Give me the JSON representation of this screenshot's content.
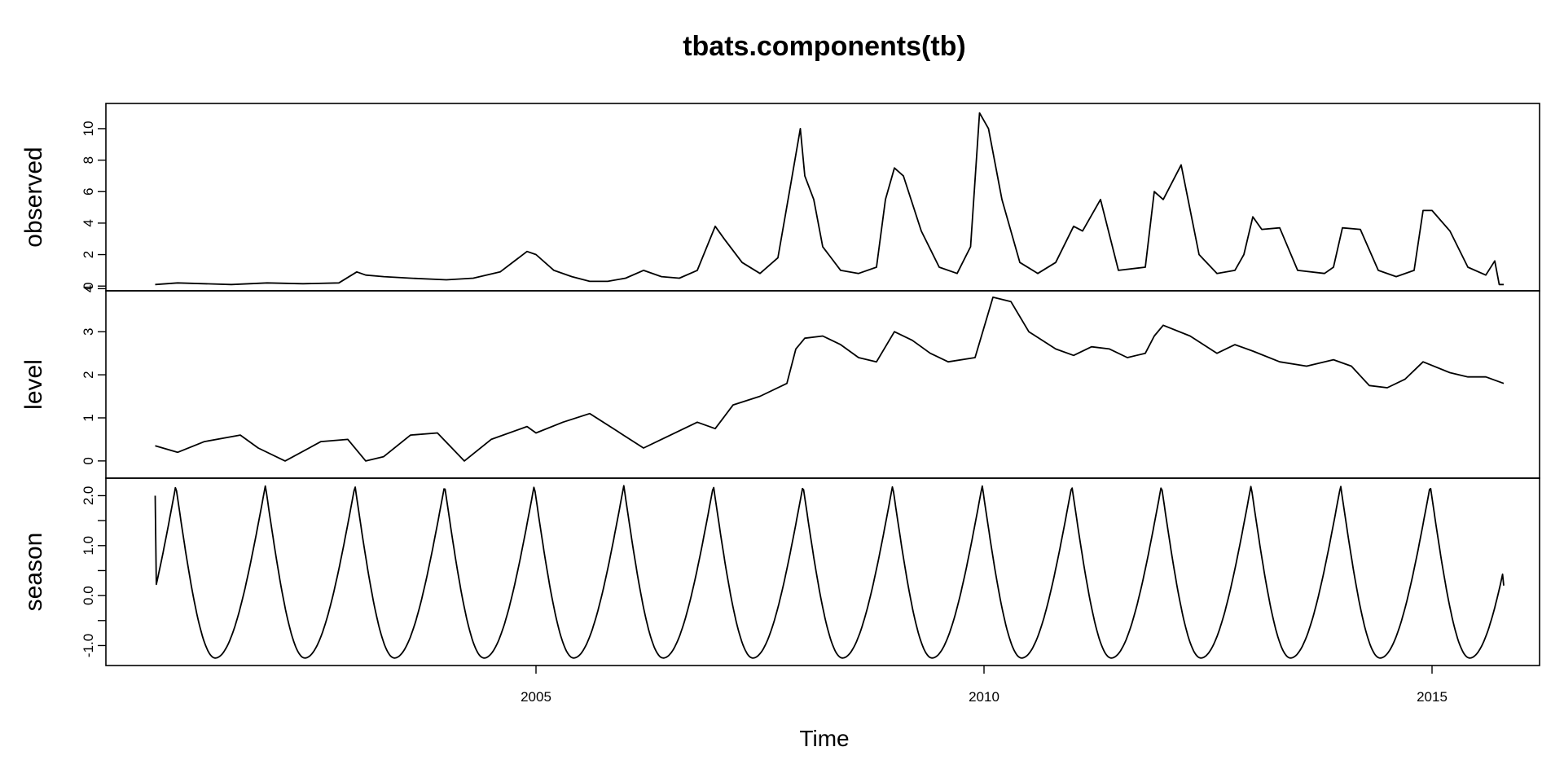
{
  "chart_data": {
    "type": "line",
    "title": "tbats.components(tb)",
    "xlabel": "Time",
    "xlim": [
      2000.2,
      2016.2
    ],
    "x_ticks": [
      2005,
      2010,
      2015
    ],
    "x_tick_labels": [
      "2005",
      "2010",
      "2015"
    ],
    "panels": [
      {
        "name": "observed",
        "ylabel": "observed",
        "ylim": [
          -0.3,
          11.6
        ],
        "y_ticks": [
          0,
          2,
          4,
          6,
          8,
          10
        ],
        "y_tick_labels": [
          "0",
          "2",
          "4",
          "6",
          "8",
          "10"
        ],
        "x": [
          2000.75,
          2001.0,
          2001.3,
          2001.6,
          2002.0,
          2002.4,
          2002.8,
          2003.0,
          2003.1,
          2003.3,
          2003.6,
          2004.0,
          2004.3,
          2004.6,
          2004.9,
          2005.0,
          2005.2,
          2005.4,
          2005.6,
          2005.8,
          2006.0,
          2006.2,
          2006.4,
          2006.6,
          2006.8,
          2007.0,
          2007.1,
          2007.3,
          2007.5,
          2007.7,
          2007.85,
          2007.95,
          2008.0,
          2008.1,
          2008.2,
          2008.4,
          2008.6,
          2008.8,
          2008.9,
          2009.0,
          2009.1,
          2009.3,
          2009.5,
          2009.7,
          2009.85,
          2009.95,
          2010.05,
          2010.2,
          2010.4,
          2010.6,
          2010.8,
          2011.0,
          2011.1,
          2011.3,
          2011.5,
          2011.8,
          2011.9,
          2012.0,
          2012.2,
          2012.4,
          2012.6,
          2012.8,
          2012.9,
          2013.0,
          2013.1,
          2013.3,
          2013.5,
          2013.8,
          2013.9,
          2014.0,
          2014.2,
          2014.4,
          2014.6,
          2014.8,
          2014.9,
          2015.0,
          2015.2,
          2015.4,
          2015.6,
          2015.7,
          2015.75,
          2015.8
        ],
        "values": [
          0.1,
          0.2,
          0.15,
          0.1,
          0.2,
          0.15,
          0.2,
          0.9,
          0.7,
          0.6,
          0.5,
          0.4,
          0.5,
          0.9,
          2.2,
          2.0,
          1.0,
          0.6,
          0.3,
          0.3,
          0.5,
          1.0,
          0.6,
          0.5,
          1.0,
          3.8,
          3.0,
          1.5,
          0.8,
          1.8,
          6.7,
          10.0,
          7.0,
          5.5,
          2.5,
          1.0,
          0.8,
          1.2,
          5.5,
          7.5,
          7.0,
          3.5,
          1.2,
          0.8,
          2.5,
          11.0,
          10.0,
          5.5,
          1.5,
          0.8,
          1.5,
          3.8,
          3.5,
          5.5,
          1.0,
          1.2,
          6.0,
          5.5,
          7.7,
          2.0,
          0.8,
          1.0,
          2.0,
          4.4,
          3.6,
          3.7,
          1.0,
          0.8,
          1.2,
          3.7,
          3.6,
          1.0,
          0.6,
          1.0,
          4.8,
          4.8,
          3.5,
          1.2,
          0.7,
          1.6,
          0.1,
          0.1
        ]
      },
      {
        "name": "level",
        "ylabel": "level",
        "ylim": [
          -0.4,
          3.95
        ],
        "y_ticks": [
          0,
          1,
          2,
          3,
          4
        ],
        "y_tick_labels": [
          "0",
          "1",
          "2",
          "3",
          "4"
        ],
        "x": [
          2000.75,
          2001.0,
          2001.3,
          2001.7,
          2001.9,
          2002.2,
          2002.6,
          2002.9,
          2003.1,
          2003.3,
          2003.6,
          2003.9,
          2004.2,
          2004.5,
          2004.9,
          2005.0,
          2005.3,
          2005.6,
          2005.9,
          2006.2,
          2006.4,
          2006.8,
          2007.0,
          2007.2,
          2007.5,
          2007.8,
          2007.9,
          2008.0,
          2008.2,
          2008.4,
          2008.6,
          2008.8,
          2009.0,
          2009.2,
          2009.4,
          2009.6,
          2009.9,
          2010.1,
          2010.3,
          2010.5,
          2010.8,
          2011.0,
          2011.2,
          2011.4,
          2011.6,
          2011.8,
          2011.9,
          2012.0,
          2012.3,
          2012.6,
          2012.8,
          2013.0,
          2013.3,
          2013.6,
          2013.9,
          2014.1,
          2014.3,
          2014.5,
          2014.7,
          2014.9,
          2015.2,
          2015.4,
          2015.6,
          2015.8
        ],
        "values": [
          0.35,
          0.2,
          0.45,
          0.6,
          0.3,
          0.0,
          0.45,
          0.5,
          0.0,
          0.1,
          0.6,
          0.65,
          0.0,
          0.5,
          0.8,
          0.65,
          0.9,
          1.1,
          0.7,
          0.3,
          0.5,
          0.9,
          0.75,
          1.3,
          1.5,
          1.8,
          2.6,
          2.85,
          2.9,
          2.7,
          2.4,
          2.3,
          3.0,
          2.8,
          2.5,
          2.3,
          2.4,
          3.8,
          3.7,
          3.0,
          2.6,
          2.45,
          2.65,
          2.6,
          2.4,
          2.5,
          2.9,
          3.15,
          2.9,
          2.5,
          2.7,
          2.55,
          2.3,
          2.2,
          2.35,
          2.2,
          1.75,
          1.7,
          1.9,
          2.3,
          2.05,
          1.95,
          1.95,
          1.8
        ]
      },
      {
        "name": "season",
        "ylabel": "season",
        "ylim": [
          -1.4,
          2.35
        ],
        "y_ticks": [
          -1.0,
          -0.5,
          0.0,
          0.5,
          1.0,
          1.5,
          2.0
        ],
        "y_tick_labels": [
          "-1.0",
          "",
          "0.0",
          "",
          "1.0",
          "",
          "2.0"
        ],
        "period": 1,
        "peak": 2.2,
        "trough": -1.25,
        "peak_at_year_fraction": 0.98,
        "trough_at_year_fraction": 0.42,
        "x_start": 2000.75,
        "x_end": 2015.8,
        "start_value": 2.0,
        "end_value": 0.2
      }
    ]
  }
}
